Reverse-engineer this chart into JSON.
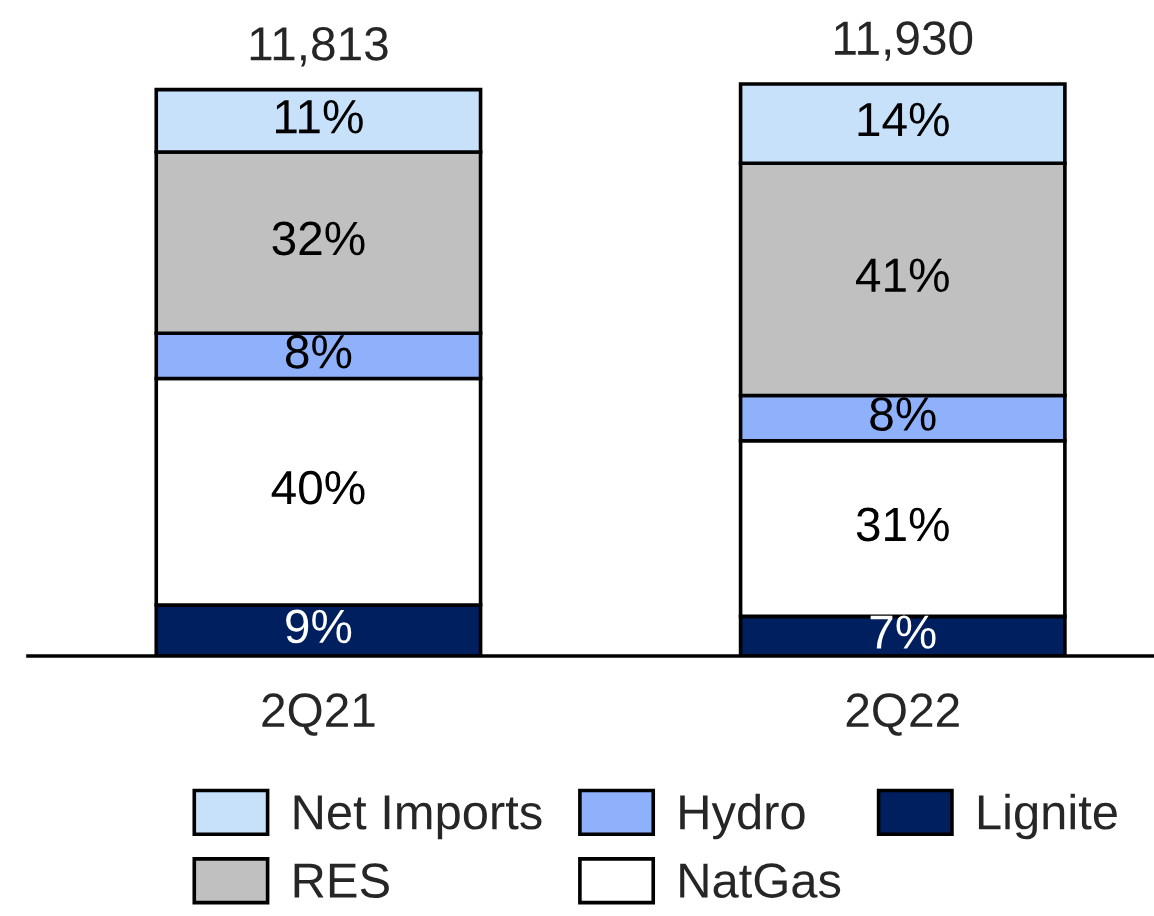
{
  "chart_data": {
    "type": "bar",
    "stacked": true,
    "categories": [
      "2Q21",
      "2Q22"
    ],
    "series": [
      {
        "name": "Lignite",
        "color": "#001f5f",
        "values": [
          9,
          7
        ],
        "value_labels": [
          "9%",
          "7%"
        ]
      },
      {
        "name": "NatGas",
        "color": "#ffffff",
        "values": [
          40,
          31
        ],
        "value_labels": [
          "40%",
          "31%"
        ]
      },
      {
        "name": "Hydro",
        "color": "#8fb0fa",
        "values": [
          8,
          8
        ],
        "value_labels": [
          "8%",
          "8%"
        ]
      },
      {
        "name": "RES",
        "color": "#c0c0c0",
        "values": [
          32,
          41
        ],
        "value_labels": [
          "32%",
          "41%"
        ]
      },
      {
        "name": "Net Imports",
        "color": "#c8e1fa",
        "values": [
          11,
          14
        ],
        "value_labels": [
          "11%",
          "14%"
        ]
      }
    ],
    "annotations": [
      {
        "text": "11,813",
        "x": "2Q21",
        "y": 100
      },
      {
        "text": "11,930",
        "x": "2Q22",
        "y": 101
      }
    ],
    "tick_labels": "x",
    "legend": "bottom"
  }
}
